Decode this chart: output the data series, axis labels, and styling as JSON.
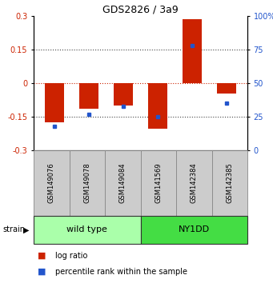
{
  "title": "GDS2826 / 3a9",
  "samples": [
    "GSM149076",
    "GSM149078",
    "GSM149084",
    "GSM141569",
    "GSM142384",
    "GSM142385"
  ],
  "log_ratios": [
    -0.175,
    -0.115,
    -0.1,
    -0.205,
    0.285,
    -0.045
  ],
  "percentile_ranks": [
    18,
    27,
    33,
    25,
    78,
    35
  ],
  "groups": [
    {
      "label": "wild type",
      "samples": [
        0,
        1,
        2
      ],
      "color": "#aaffaa"
    },
    {
      "label": "NY1DD",
      "samples": [
        3,
        4,
        5
      ],
      "color": "#44dd44"
    }
  ],
  "ylim": [
    -0.3,
    0.3
  ],
  "yticks_left": [
    -0.3,
    -0.15,
    0,
    0.15,
    0.3
  ],
  "bar_color": "#cc2200",
  "dot_color": "#2255cc",
  "zero_line_color": "#cc2200",
  "grid_color": "#444444",
  "bar_width": 0.55,
  "strain_label": "strain",
  "legend_log_ratio": "log ratio",
  "legend_percentile": "percentile rank within the sample",
  "wild_type_color": "#bbffbb",
  "ny1dd_color": "#44ee44"
}
